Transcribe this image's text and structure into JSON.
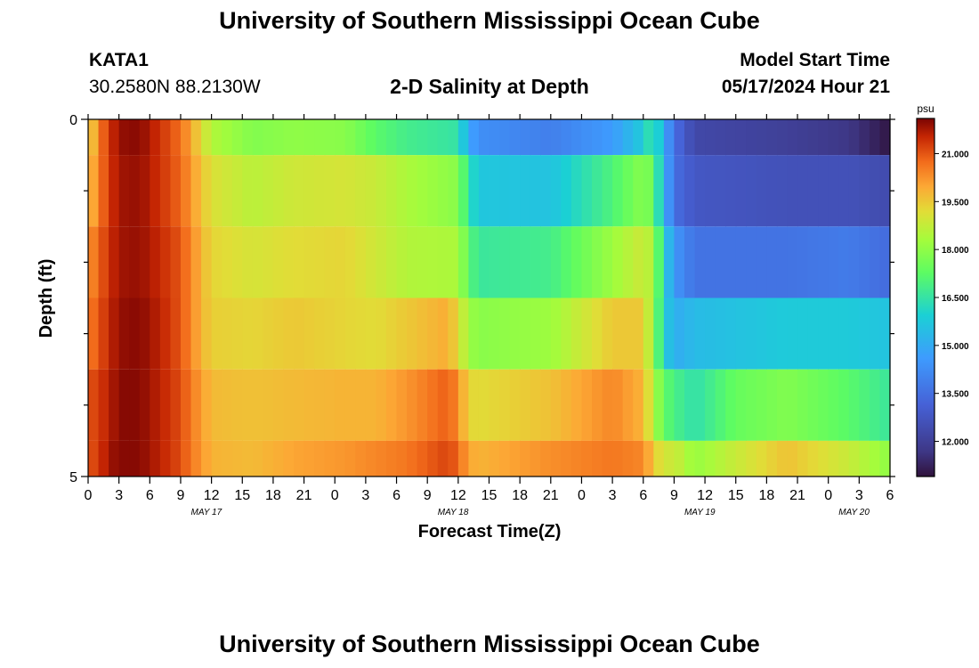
{
  "page": {
    "title_top": "University of Southern Mississippi Ocean Cube",
    "title_bottom": "University of Southern Mississippi Ocean Cube"
  },
  "header": {
    "station": "KATA1",
    "coords": "30.2580N  88.2130W",
    "plot_title": "2-D Salinity at Depth",
    "model_start_label": "Model Start Time",
    "model_start_value": "05/17/2024 Hour 21"
  },
  "chart_data": {
    "type": "heatmap",
    "title": "2-D Salinity at Depth",
    "xlabel": "Forecast Time(Z)",
    "ylabel": "Depth (ft)",
    "x_unit": "hours since 05/17/2024 00Z",
    "xlim": [
      0,
      78
    ],
    "ylim": [
      5,
      0
    ],
    "x_ticks": [
      0,
      3,
      6,
      9,
      12,
      15,
      18,
      21,
      24,
      27,
      30,
      33,
      36,
      39,
      42,
      45,
      48,
      51,
      54,
      57,
      60,
      63,
      66,
      69,
      72,
      75,
      78
    ],
    "x_tick_labels": [
      "0",
      "3",
      "6",
      "9",
      "12",
      "15",
      "18",
      "21",
      "0",
      "3",
      "6",
      "9",
      "12",
      "15",
      "18",
      "21",
      "0",
      "3",
      "6",
      "9",
      "12",
      "15",
      "18",
      "21",
      "0",
      "3",
      "6"
    ],
    "y_tick_labels": [
      "0",
      "5"
    ],
    "y_minor_ticks": [
      1,
      2,
      3,
      4
    ],
    "date_labels": [
      {
        "label": "MAY 17",
        "x": 11.5
      },
      {
        "label": "MAY 18",
        "x": 35.5
      },
      {
        "label": "MAY 19",
        "x": 59.5
      },
      {
        "label": "MAY 20",
        "x": 74.5
      }
    ],
    "colorbar": {
      "unit": "psu",
      "min": 10.9,
      "max": 22.1,
      "tick_values": [
        21.0,
        19.5,
        18.0,
        16.5,
        15.0,
        13.5,
        12.0
      ],
      "tick_labels": [
        "21.000",
        "19.500",
        "18.000",
        "16.500",
        "15.000",
        "13.500",
        "12.000"
      ]
    },
    "depth_layers": [
      {
        "depth_range": [
          0.0,
          0.5
        ],
        "values_by_hour": [
          [
            0,
            19.0
          ],
          [
            1,
            20.5
          ],
          [
            2,
            21.3
          ],
          [
            3,
            21.9
          ],
          [
            5,
            22.0
          ],
          [
            7,
            21.4
          ],
          [
            9,
            20.7
          ],
          [
            10,
            20.0
          ],
          [
            11,
            19.2
          ],
          [
            12,
            18.5
          ],
          [
            16,
            17.8
          ],
          [
            20,
            18.0
          ],
          [
            25,
            17.9
          ],
          [
            28,
            17.2
          ],
          [
            31,
            16.8
          ],
          [
            36,
            16.5
          ],
          [
            37,
            14.9
          ],
          [
            38,
            14.3
          ],
          [
            45,
            13.9
          ],
          [
            51,
            14.6
          ],
          [
            54,
            15.8
          ],
          [
            55,
            16.8
          ],
          [
            56,
            15.0
          ],
          [
            57,
            13.5
          ],
          [
            59,
            12.3
          ],
          [
            68,
            12.0
          ],
          [
            74,
            11.7
          ],
          [
            78,
            11.0
          ]
        ]
      },
      {
        "depth_range": [
          0.5,
          1.5
        ],
        "values_by_hour": [
          [
            0,
            19.5
          ],
          [
            1,
            20.5
          ],
          [
            2,
            21.3
          ],
          [
            3,
            21.8
          ],
          [
            5,
            21.9
          ],
          [
            7,
            21.4
          ],
          [
            9,
            20.8
          ],
          [
            10,
            20.2
          ],
          [
            11,
            19.6
          ],
          [
            12,
            19.1
          ],
          [
            16,
            18.6
          ],
          [
            20,
            18.9
          ],
          [
            25,
            19.0
          ],
          [
            28,
            18.8
          ],
          [
            31,
            18.4
          ],
          [
            36,
            17.9
          ],
          [
            37,
            16.4
          ],
          [
            38,
            15.7
          ],
          [
            45,
            15.6
          ],
          [
            51,
            17.0
          ],
          [
            54,
            17.9
          ],
          [
            55,
            17.4
          ],
          [
            56,
            15.2
          ],
          [
            57,
            13.5
          ],
          [
            59,
            12.8
          ],
          [
            68,
            12.6
          ],
          [
            74,
            12.6
          ],
          [
            78,
            12.4
          ]
        ]
      },
      {
        "depth_range": [
          1.5,
          2.5
        ],
        "values_by_hour": [
          [
            0,
            20.2
          ],
          [
            1,
            20.8
          ],
          [
            2,
            21.4
          ],
          [
            3,
            21.8
          ],
          [
            5,
            21.9
          ],
          [
            7,
            21.5
          ],
          [
            9,
            21.0
          ],
          [
            10,
            20.4
          ],
          [
            11,
            19.8
          ],
          [
            12,
            19.3
          ],
          [
            16,
            19.0
          ],
          [
            20,
            19.2
          ],
          [
            25,
            19.3
          ],
          [
            28,
            18.9
          ],
          [
            31,
            18.5
          ],
          [
            36,
            18.4
          ],
          [
            37,
            17.2
          ],
          [
            38,
            16.6
          ],
          [
            45,
            16.8
          ],
          [
            51,
            18.2
          ],
          [
            54,
            18.9
          ],
          [
            55,
            18.3
          ],
          [
            56,
            16.0
          ],
          [
            57,
            14.5
          ],
          [
            59,
            13.6
          ],
          [
            68,
            13.6
          ],
          [
            74,
            13.8
          ],
          [
            78,
            13.4
          ]
        ]
      },
      {
        "depth_range": [
          2.5,
          3.5
        ],
        "values_by_hour": [
          [
            0,
            20.5
          ],
          [
            1,
            21.0
          ],
          [
            2,
            21.5
          ],
          [
            3,
            21.9
          ],
          [
            5,
            22.0
          ],
          [
            7,
            21.6
          ],
          [
            9,
            21.0
          ],
          [
            10,
            20.4
          ],
          [
            11,
            19.8
          ],
          [
            12,
            19.4
          ],
          [
            16,
            19.3
          ],
          [
            20,
            19.5
          ],
          [
            25,
            19.3
          ],
          [
            28,
            19.2
          ],
          [
            31,
            19.5
          ],
          [
            35,
            19.9
          ],
          [
            36,
            19.2
          ],
          [
            37,
            18.2
          ],
          [
            38,
            17.9
          ],
          [
            45,
            18.2
          ],
          [
            51,
            19.5
          ],
          [
            54,
            19.5
          ],
          [
            55,
            18.0
          ],
          [
            56,
            16.0
          ],
          [
            57,
            15.0
          ],
          [
            59,
            15.4
          ],
          [
            68,
            15.8
          ],
          [
            74,
            15.8
          ],
          [
            78,
            15.6
          ]
        ]
      },
      {
        "depth_range": [
          3.5,
          4.5
        ],
        "values_by_hour": [
          [
            0,
            21.0
          ],
          [
            1,
            21.3
          ],
          [
            2,
            21.6
          ],
          [
            3,
            22.0
          ],
          [
            5,
            22.0
          ],
          [
            7,
            21.6
          ],
          [
            9,
            21.1
          ],
          [
            10,
            20.6
          ],
          [
            11,
            20.1
          ],
          [
            12,
            19.7
          ],
          [
            16,
            19.6
          ],
          [
            20,
            19.7
          ],
          [
            25,
            19.8
          ],
          [
            28,
            19.8
          ],
          [
            31,
            20.2
          ],
          [
            35,
            20.9
          ],
          [
            36,
            20.3
          ],
          [
            37,
            19.3
          ],
          [
            38,
            19.2
          ],
          [
            45,
            19.6
          ],
          [
            51,
            20.4
          ],
          [
            54,
            19.8
          ],
          [
            55,
            18.5
          ],
          [
            56,
            17.3
          ],
          [
            57,
            16.9
          ],
          [
            59,
            16.4
          ],
          [
            63,
            17.4
          ],
          [
            68,
            17.8
          ],
          [
            74,
            17.2
          ],
          [
            78,
            16.6
          ]
        ]
      },
      {
        "depth_range": [
          4.5,
          5.0
        ],
        "values_by_hour": [
          [
            0,
            21.0
          ],
          [
            1,
            21.3
          ],
          [
            2,
            21.8
          ],
          [
            3,
            22.0
          ],
          [
            5,
            22.0
          ],
          [
            7,
            21.6
          ],
          [
            9,
            21.1
          ],
          [
            10,
            20.6
          ],
          [
            11,
            20.2
          ],
          [
            12,
            19.8
          ],
          [
            16,
            19.7
          ],
          [
            20,
            20.0
          ],
          [
            25,
            20.2
          ],
          [
            28,
            20.4
          ],
          [
            31,
            20.6
          ],
          [
            35,
            21.2
          ],
          [
            36,
            20.8
          ],
          [
            37,
            20.0
          ],
          [
            38,
            19.8
          ],
          [
            45,
            20.3
          ],
          [
            51,
            20.6
          ],
          [
            54,
            20.4
          ],
          [
            55,
            19.5
          ],
          [
            56,
            18.9
          ],
          [
            57,
            18.9
          ],
          [
            59,
            18.1
          ],
          [
            63,
            18.8
          ],
          [
            68,
            19.6
          ],
          [
            74,
            18.8
          ],
          [
            78,
            18.0
          ]
        ]
      }
    ]
  }
}
